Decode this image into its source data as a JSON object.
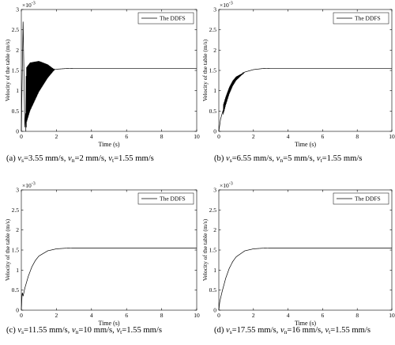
{
  "figure": {
    "panels": [
      {
        "caption": {
          "label": "(a)",
          "terms": [
            {
              "sym": "v",
              "sub": "s",
              "val": "=3.55 mm/s,"
            },
            {
              "sym": "v",
              "sub": "n",
              "val": "=2 mm/s,"
            },
            {
              "sym": "v",
              "sub": "t",
              "val": "=1.55 mm/s"
            }
          ]
        }
      },
      {
        "caption": {
          "label": "(b)",
          "terms": [
            {
              "sym": "v",
              "sub": "s",
              "val": "=6.55 mm/s,"
            },
            {
              "sym": "v",
              "sub": "n",
              "val": "=5 mm/s,"
            },
            {
              "sym": "v",
              "sub": "t",
              "val": "=1.55 mm/s"
            }
          ]
        }
      },
      {
        "caption": {
          "label": "(c)",
          "terms": [
            {
              "sym": "v",
              "sub": "s",
              "val": "=11.55 mm/s,"
            },
            {
              "sym": "v",
              "sub": "n",
              "val": "=10 mm/s,"
            },
            {
              "sym": "v",
              "sub": "t",
              "val": "=1.55 mm/s"
            }
          ]
        }
      },
      {
        "caption": {
          "label": "(d)",
          "terms": [
            {
              "sym": "v",
              "sub": "s",
              "val": "=17.55 mm/s,"
            },
            {
              "sym": "v",
              "sub": "n",
              "val": "=16 mm/s,"
            },
            {
              "sym": "v",
              "sub": "t",
              "val": "=1.55 mm/s"
            }
          ]
        }
      }
    ]
  },
  "chart_data": [
    {
      "type": "line",
      "xlabel": "Time (s)",
      "ylabel": "Velocity of the table (m/s)",
      "y_multiplier": "×10-3",
      "xlim": [
        0,
        10
      ],
      "ylim": [
        0,
        3
      ],
      "xticks": [
        0,
        2,
        4,
        6,
        8,
        10
      ],
      "yticks": [
        0,
        0.5,
        1,
        1.5,
        2,
        2.5,
        3
      ],
      "legend": "top-right",
      "series": [
        {
          "name": "The DDFS",
          "color": "#000000",
          "x": [
            0,
            0.1,
            0.2,
            0.3,
            0.5,
            0.8,
            1.0,
            1.5,
            2.0,
            2.5,
            3.0,
            4.0,
            6.0,
            8.0,
            10.0
          ],
          "y": [
            0,
            2.7,
            0.1,
            0.9,
            1.1,
            1.25,
            1.35,
            1.48,
            1.53,
            1.545,
            1.55,
            1.55,
            1.55,
            1.55,
            1.55
          ],
          "oscillation": {
            "until_x": 1.9,
            "amplitude": 0.7
          }
        }
      ]
    },
    {
      "type": "line",
      "xlabel": "Time (s)",
      "ylabel": "Velocity of the table (m/s)",
      "y_multiplier": "×10-3",
      "xlim": [
        0,
        10
      ],
      "ylim": [
        0,
        3
      ],
      "xticks": [
        0,
        2,
        4,
        6,
        8,
        10
      ],
      "yticks": [
        0,
        0.5,
        1,
        1.5,
        2,
        2.5,
        3
      ],
      "legend": "top-right",
      "series": [
        {
          "name": "The DDFS",
          "color": "#000000",
          "x": [
            0,
            0.1,
            0.2,
            0.4,
            0.6,
            0.8,
            1.0,
            1.5,
            2.0,
            2.5,
            3.0,
            4.0,
            6.0,
            8.0,
            10.0
          ],
          "y": [
            0,
            0.3,
            0.45,
            0.75,
            1.0,
            1.18,
            1.3,
            1.46,
            1.52,
            1.545,
            1.55,
            1.55,
            1.55,
            1.55,
            1.55
          ],
          "oscillation": {
            "until_x": 1.5,
            "amplitude": 0.12
          }
        }
      ]
    },
    {
      "type": "line",
      "xlabel": "Time (s)",
      "ylabel": "Velocity of the table (m/s)",
      "y_multiplier": "×10-3",
      "xlim": [
        0,
        10
      ],
      "ylim": [
        0,
        3
      ],
      "xticks": [
        0,
        2,
        4,
        6,
        8,
        10
      ],
      "yticks": [
        0,
        0.5,
        1,
        1.5,
        2,
        2.5,
        3
      ],
      "legend": "top-right",
      "series": [
        {
          "name": "The DDFS",
          "color": "#000000",
          "x": [
            0,
            0.05,
            0.1,
            0.2,
            0.4,
            0.6,
            0.8,
            1.0,
            1.5,
            2.0,
            2.5,
            3.0,
            4.0,
            6.0,
            8.0,
            10.0
          ],
          "y": [
            0,
            0.45,
            0.35,
            0.55,
            0.85,
            1.08,
            1.24,
            1.35,
            1.48,
            1.53,
            1.545,
            1.55,
            1.55,
            1.55,
            1.55,
            1.55
          ],
          "oscillation": {
            "until_x": 0.25,
            "amplitude": 0.08
          }
        }
      ]
    },
    {
      "type": "line",
      "xlabel": "Time (s)",
      "ylabel": "Velocity of the table (m/s)",
      "y_multiplier": "×10-3",
      "xlim": [
        0,
        10
      ],
      "ylim": [
        0,
        3
      ],
      "xticks": [
        0,
        2,
        4,
        6,
        8,
        10
      ],
      "yticks": [
        0,
        0.5,
        1,
        1.5,
        2,
        2.5,
        3
      ],
      "legend": "top-right",
      "series": [
        {
          "name": "The DDFS",
          "color": "#000000",
          "x": [
            0,
            0.05,
            0.1,
            0.2,
            0.4,
            0.6,
            0.8,
            1.0,
            1.5,
            2.0,
            2.5,
            3.0,
            4.0,
            6.0,
            8.0,
            10.0
          ],
          "y": [
            0,
            0.2,
            0.3,
            0.48,
            0.8,
            1.04,
            1.21,
            1.33,
            1.48,
            1.53,
            1.545,
            1.55,
            1.55,
            1.55,
            1.55,
            1.55
          ],
          "oscillation": {
            "until_x": 0,
            "amplitude": 0
          }
        }
      ]
    }
  ]
}
